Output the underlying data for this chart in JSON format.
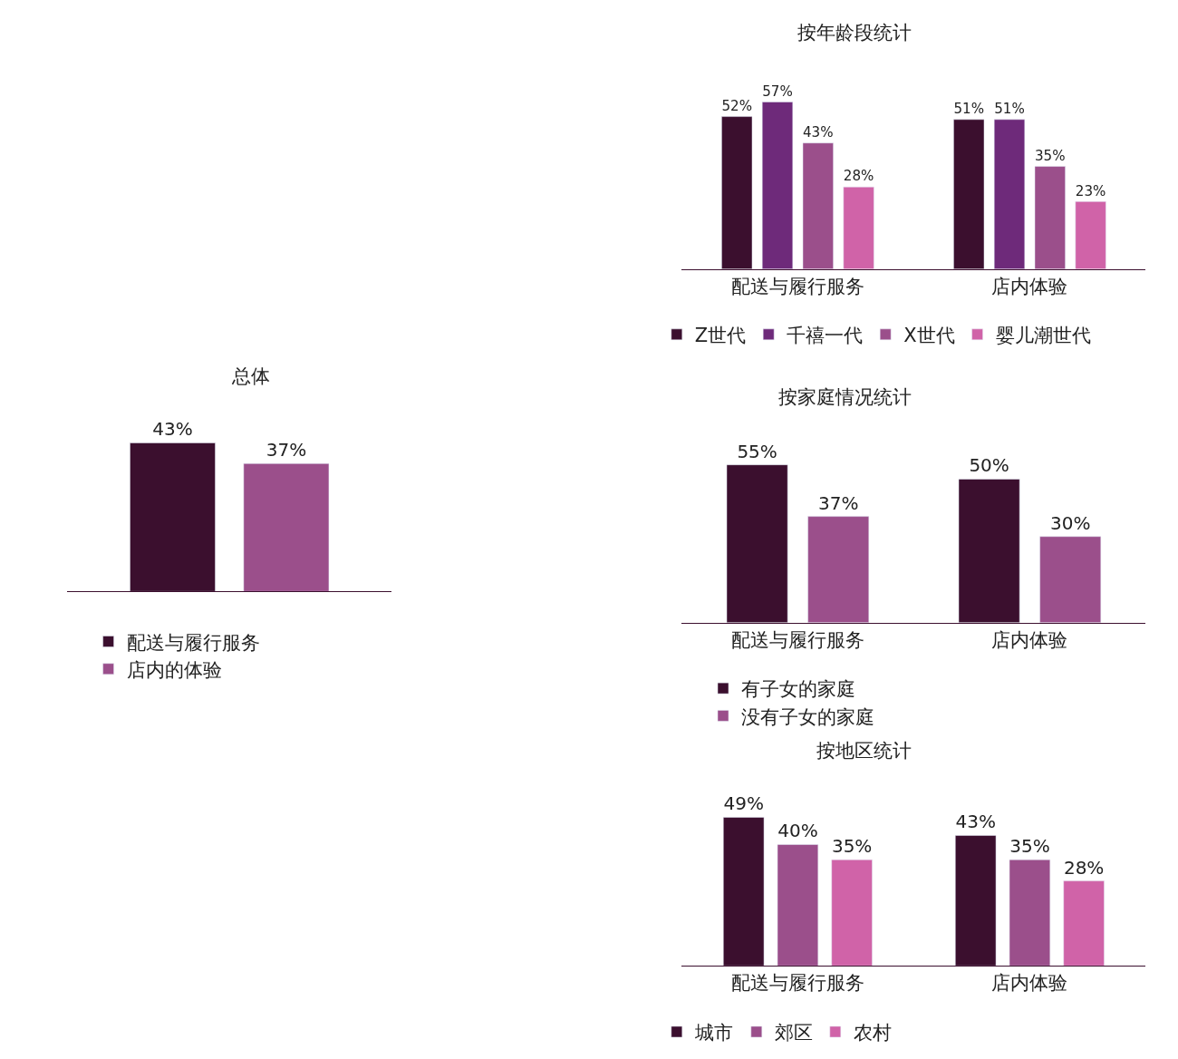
{
  "chart_data": [
    {
      "type": "bar",
      "title": "总体",
      "categories": [
        null
      ],
      "legend": "bottom",
      "series": [
        {
          "name": "配送与履行服务",
          "color": "#3b0f2e",
          "values": [
            43
          ],
          "value_labels": [
            "43%"
          ]
        },
        {
          "name": "店内的体验",
          "color": "#9b4f8b",
          "values": [
            37
          ],
          "value_labels": [
            "37%"
          ]
        }
      ]
    },
    {
      "type": "bar",
      "title": "按年龄段统计",
      "categories": [
        "配送与履行服务",
        "店内体验"
      ],
      "legend": "bottom",
      "series": [
        {
          "name": "Z世代",
          "color": "#3b0f2e",
          "values": [
            52,
            51
          ],
          "value_labels": [
            "52%",
            "51%"
          ]
        },
        {
          "name": "千禧一代",
          "color": "#6e2a7a",
          "values": [
            57,
            51
          ],
          "value_labels": [
            "57%",
            "51%"
          ]
        },
        {
          "name": "X世代",
          "color": "#9b4f8b",
          "values": [
            43,
            35
          ],
          "value_labels": [
            "43%",
            "35%"
          ]
        },
        {
          "name": "婴儿潮世代",
          "color": "#d063a8",
          "values": [
            28,
            23
          ],
          "value_labels": [
            "28%",
            "23%"
          ]
        }
      ]
    },
    {
      "type": "bar",
      "title": "按家庭情况统计",
      "categories": [
        "配送与履行服务",
        "店内体验"
      ],
      "legend": "bottom",
      "series": [
        {
          "name": "有子女的家庭",
          "color": "#3b0f2e",
          "values": [
            55,
            50
          ],
          "value_labels": [
            "55%",
            "50%"
          ]
        },
        {
          "name": "没有子女的家庭",
          "color": "#9b4f8b",
          "values": [
            37,
            30
          ],
          "value_labels": [
            "37%",
            "30%"
          ]
        }
      ]
    },
    {
      "type": "bar",
      "title": "按地区统计",
      "categories": [
        "配送与履行服务",
        "店内体验"
      ],
      "legend": "bottom",
      "series": [
        {
          "name": "城市",
          "color": "#3b0f2e",
          "values": [
            49,
            43
          ],
          "value_labels": [
            "49%",
            "43%"
          ]
        },
        {
          "name": "郊区",
          "color": "#9b4f8b",
          "values": [
            40,
            35
          ],
          "value_labels": [
            "40%",
            "35%"
          ]
        },
        {
          "name": "农村",
          "color": "#d063a8",
          "values": [
            35,
            28
          ],
          "value_labels": [
            "35%",
            "28%"
          ]
        }
      ]
    }
  ]
}
